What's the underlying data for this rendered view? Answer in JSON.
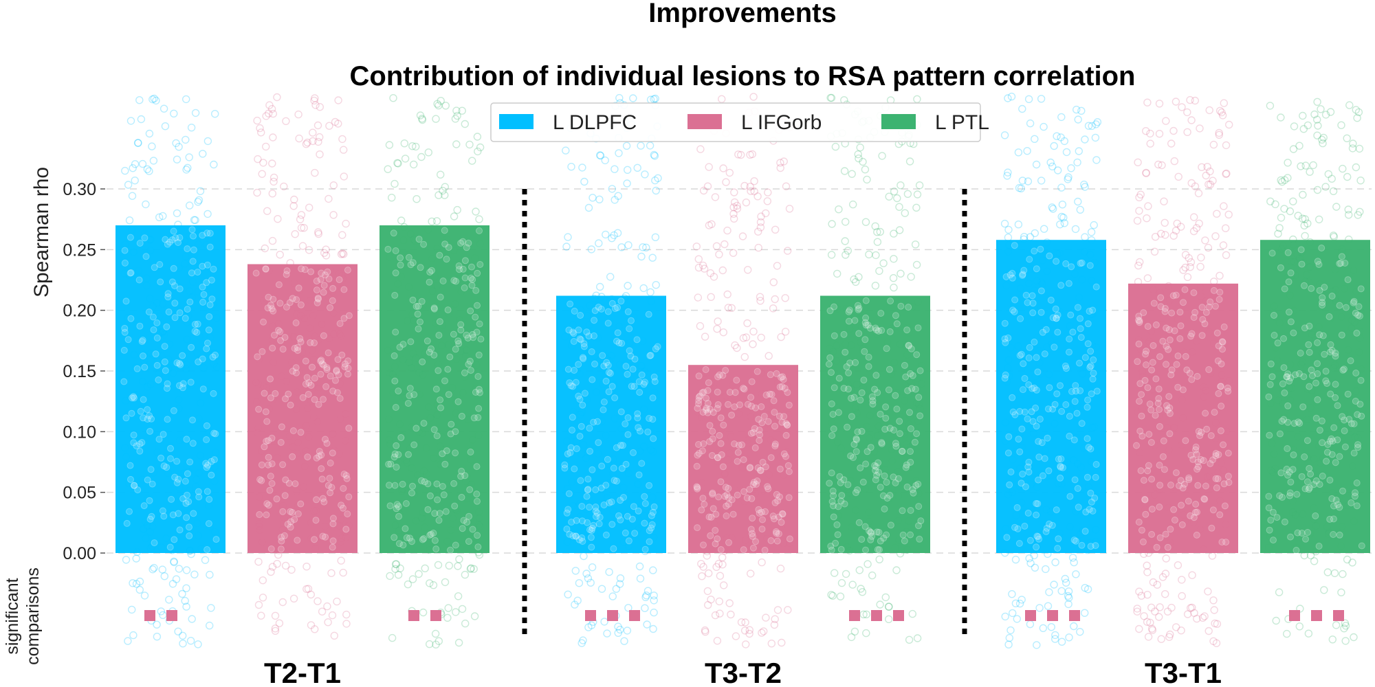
{
  "chart_data": {
    "type": "bar",
    "suptitle": "Improvements",
    "title": "Contribution of individual lesions to RSA pattern correlation",
    "ylabel": "Spearman rho",
    "sig_label_line1": "significant",
    "sig_label_line2": "comparisons",
    "ylim": [
      0,
      0.3
    ],
    "yticks": [
      "0.00",
      "0.05",
      "0.10",
      "0.15",
      "0.20",
      "0.25",
      "0.30"
    ],
    "grid": true,
    "legend_position": "top-center",
    "categories": [
      "T2-T1",
      "T3-T2",
      "T3-T1"
    ],
    "series": [
      {
        "name": "L DLPFC",
        "color": "#00BFFF",
        "values": [
          0.27,
          0.212,
          0.258
        ]
      },
      {
        "name": "L IFGorb",
        "color": "#DB7093",
        "values": [
          0.238,
          0.155,
          0.222
        ]
      },
      {
        "name": "L PTL",
        "color": "#3CB371",
        "values": [
          0.27,
          0.212,
          0.258
        ]
      }
    ],
    "significance_marker_color": "#DB7093",
    "significance_markers": [
      [
        2,
        0,
        2
      ],
      [
        3,
        0,
        3
      ],
      [
        3,
        0,
        3
      ]
    ]
  }
}
